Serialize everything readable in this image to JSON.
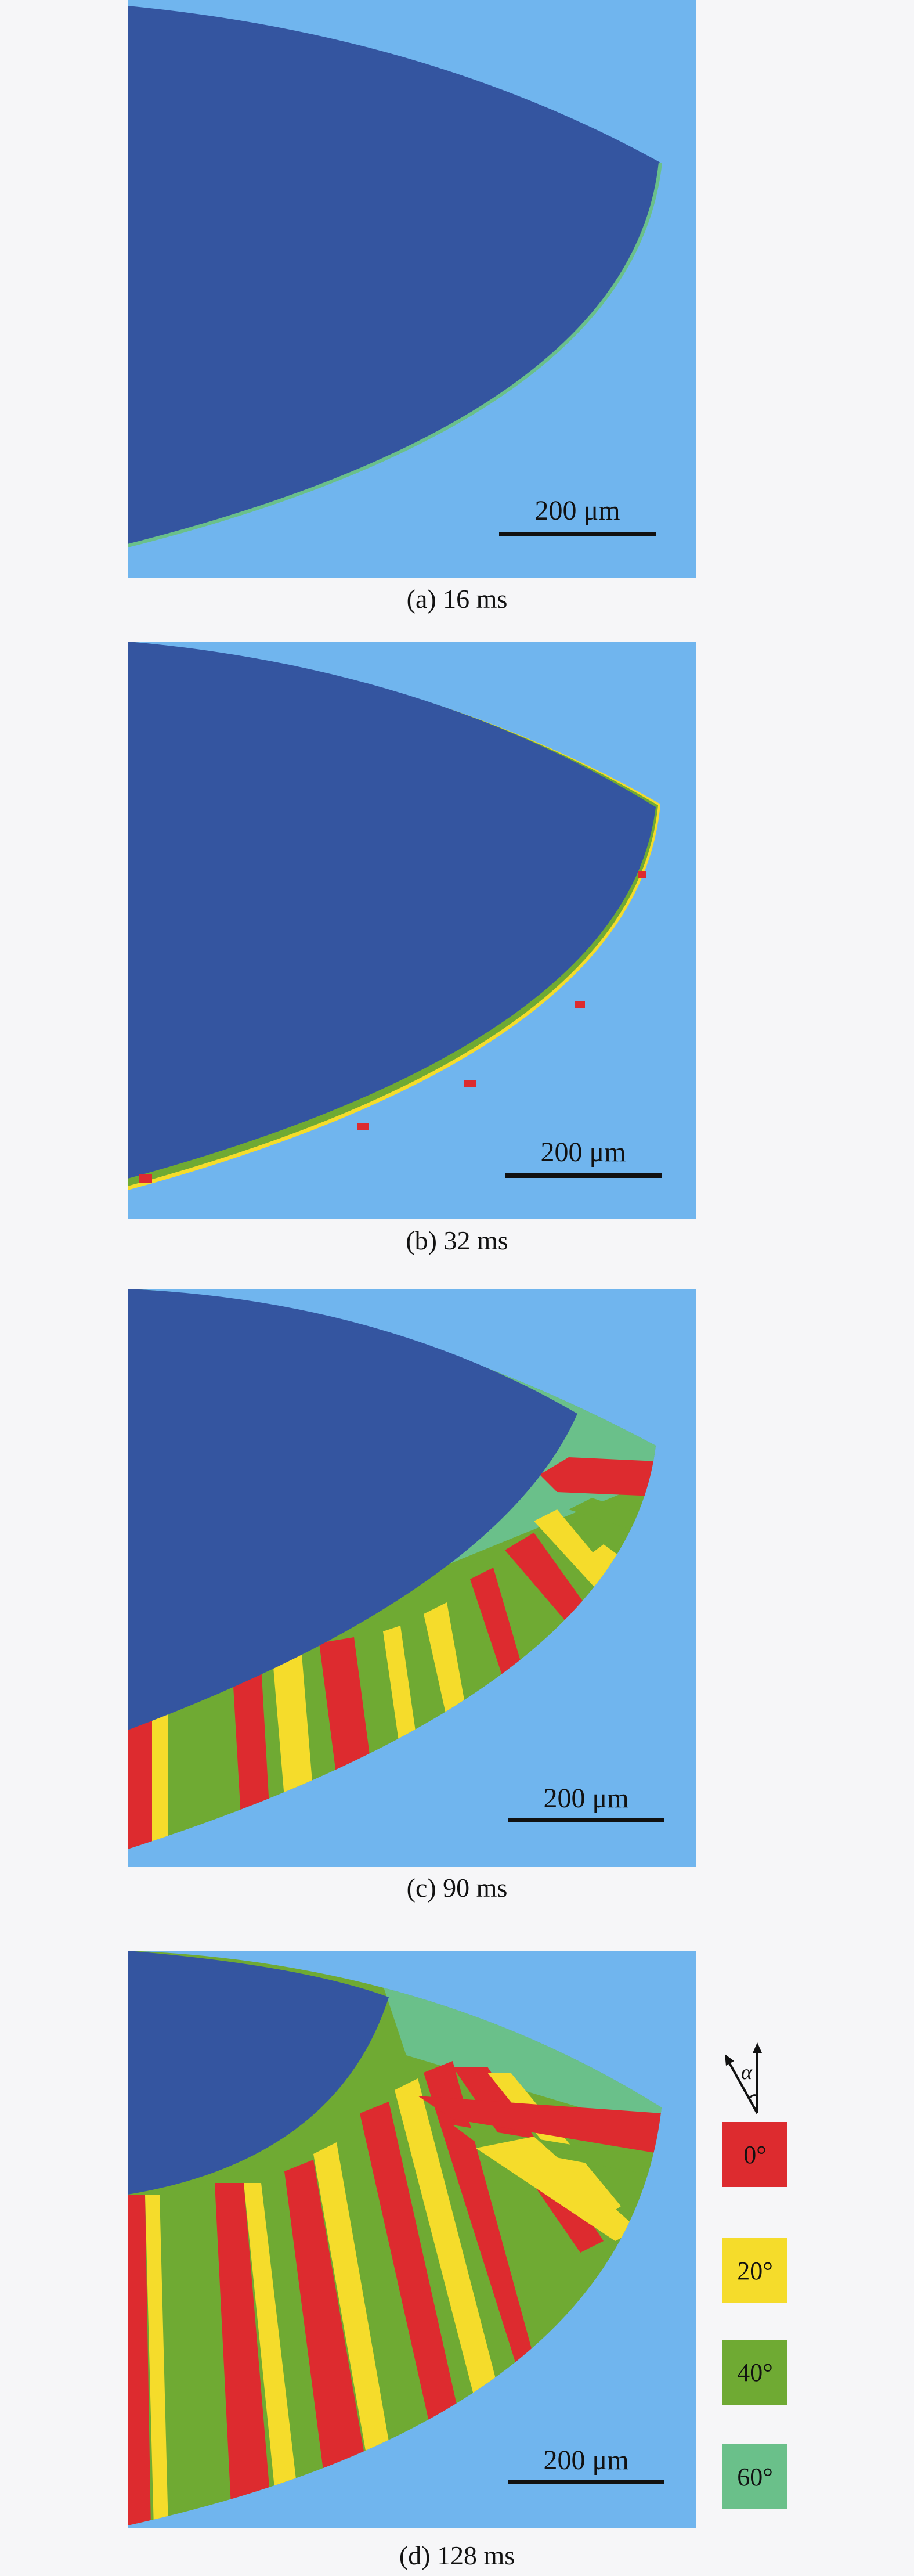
{
  "colors": {
    "background": "#70b5ee",
    "parent_melt": "#3455a0",
    "deg0": "#dd2b2f",
    "deg20": "#f5dc2b",
    "deg40": "#6faa33",
    "deg60": "#6ac08a"
  },
  "panels": [
    {
      "caption": "(a) 16 ms",
      "scale_bar": "200 μm"
    },
    {
      "caption": "(b) 32 ms",
      "scale_bar": "200 μm"
    },
    {
      "caption": "(c) 90 ms",
      "scale_bar": "200 μm"
    },
    {
      "caption": "(d) 128 ms",
      "scale_bar": "200 μm"
    }
  ],
  "legend": {
    "angle_symbol": "α",
    "items": [
      "0°",
      "20°",
      "40°",
      "60°"
    ]
  }
}
